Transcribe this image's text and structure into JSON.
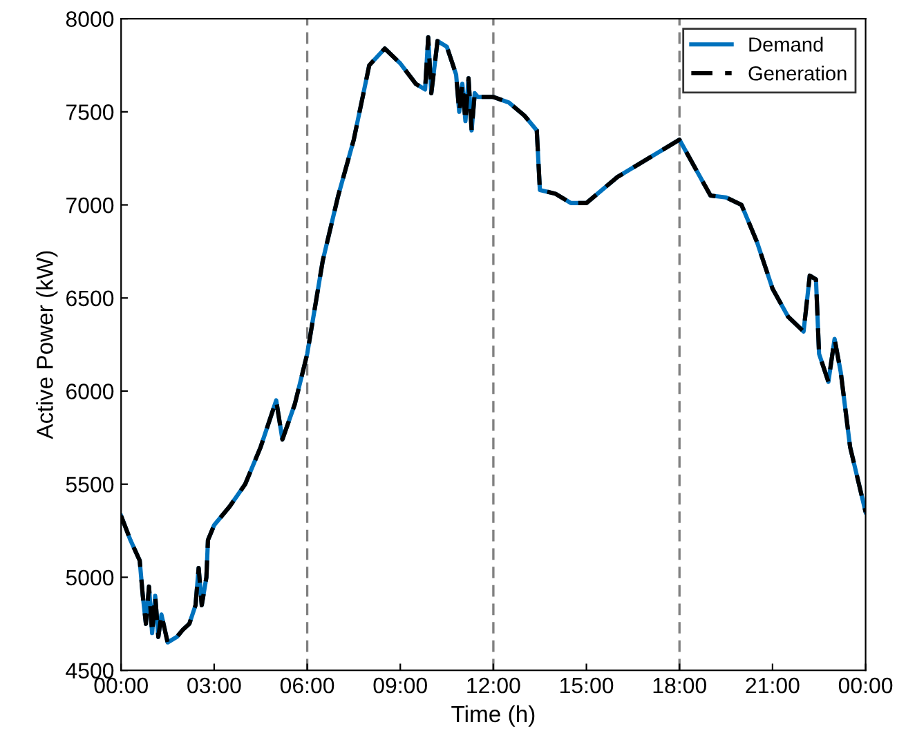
{
  "chart_data": {
    "type": "line",
    "xlabel": "Time (h)",
    "ylabel": "Active Power (kW)",
    "x": [
      0,
      0.3,
      0.6,
      0.7,
      0.8,
      0.9,
      1.0,
      1.1,
      1.2,
      1.3,
      1.5,
      1.8,
      2.0,
      2.2,
      2.4,
      2.5,
      2.6,
      2.75,
      2.8,
      3.0,
      3.5,
      4.0,
      4.5,
      5.0,
      5.2,
      5.6,
      6.0,
      6.5,
      7.0,
      7.5,
      8.0,
      8.5,
      9.0,
      9.5,
      9.8,
      9.9,
      10.0,
      10.2,
      10.5,
      10.8,
      10.9,
      11.0,
      11.1,
      11.2,
      11.3,
      11.4,
      11.5,
      12.0,
      12.5,
      13.0,
      13.4,
      13.5,
      14.0,
      14.5,
      15.0,
      16.0,
      17.0,
      18.0,
      18.5,
      19.0,
      19.5,
      20.0,
      20.5,
      21.0,
      21.5,
      22.0,
      22.2,
      22.4,
      22.5,
      22.8,
      23.0,
      23.2,
      23.5,
      24.0
    ],
    "series": [
      {
        "name": "Demand",
        "color": "#0072bd",
        "line_style": "solid",
        "values": [
          5330,
          5200,
          5090,
          4900,
          4750,
          4950,
          4700,
          4900,
          4680,
          4800,
          4650,
          4680,
          4720,
          4750,
          4850,
          5050,
          4850,
          5000,
          5200,
          5280,
          5380,
          5500,
          5700,
          5950,
          5740,
          5930,
          6200,
          6700,
          7050,
          7350,
          7750,
          7840,
          7760,
          7650,
          7620,
          7900,
          7600,
          7880,
          7850,
          7700,
          7500,
          7650,
          7450,
          7680,
          7400,
          7600,
          7580,
          7580,
          7550,
          7480,
          7400,
          7080,
          7060,
          7010,
          7010,
          7150,
          7250,
          7350,
          7200,
          7050,
          7040,
          7000,
          6800,
          6550,
          6400,
          6320,
          6620,
          6600,
          6200,
          6050,
          6280,
          6100,
          5700,
          5350
        ]
      },
      {
        "name": "Generation",
        "color": "#000000",
        "line_style": "dashed",
        "values": [
          5330,
          5200,
          5090,
          4900,
          4750,
          4950,
          4700,
          4900,
          4680,
          4800,
          4650,
          4680,
          4720,
          4750,
          4850,
          5050,
          4850,
          5000,
          5200,
          5280,
          5380,
          5500,
          5700,
          5950,
          5740,
          5930,
          6200,
          6700,
          7050,
          7350,
          7750,
          7840,
          7760,
          7650,
          7620,
          7900,
          7600,
          7880,
          7850,
          7700,
          7500,
          7650,
          7450,
          7680,
          7400,
          7600,
          7580,
          7580,
          7550,
          7480,
          7400,
          7080,
          7060,
          7010,
          7010,
          7150,
          7250,
          7350,
          7200,
          7050,
          7040,
          7000,
          6800,
          6550,
          6400,
          6320,
          6620,
          6600,
          6200,
          6050,
          6280,
          6100,
          5700,
          5350
        ]
      }
    ],
    "xlim": [
      0,
      24
    ],
    "xticks": [
      {
        "value": 0,
        "label": "00:00"
      },
      {
        "value": 3,
        "label": "03:00"
      },
      {
        "value": 6,
        "label": "06:00"
      },
      {
        "value": 9,
        "label": "09:00"
      },
      {
        "value": 12,
        "label": "12:00"
      },
      {
        "value": 15,
        "label": "15:00"
      },
      {
        "value": 18,
        "label": "18:00"
      },
      {
        "value": 21,
        "label": "21:00"
      },
      {
        "value": 24,
        "label": "00:00"
      }
    ],
    "ylim": [
      4500,
      8000
    ],
    "yticks": [
      4500,
      5000,
      5500,
      6000,
      6500,
      7000,
      7500,
      8000
    ],
    "ref_lines": [
      {
        "axis": "x",
        "value": 6,
        "color": "#808080",
        "line_style": "dashed"
      },
      {
        "axis": "x",
        "value": 12,
        "color": "#808080",
        "line_style": "dashed"
      },
      {
        "axis": "x",
        "value": 18,
        "color": "#808080",
        "line_style": "dashed"
      }
    ],
    "grid": false,
    "legend": "top right"
  }
}
